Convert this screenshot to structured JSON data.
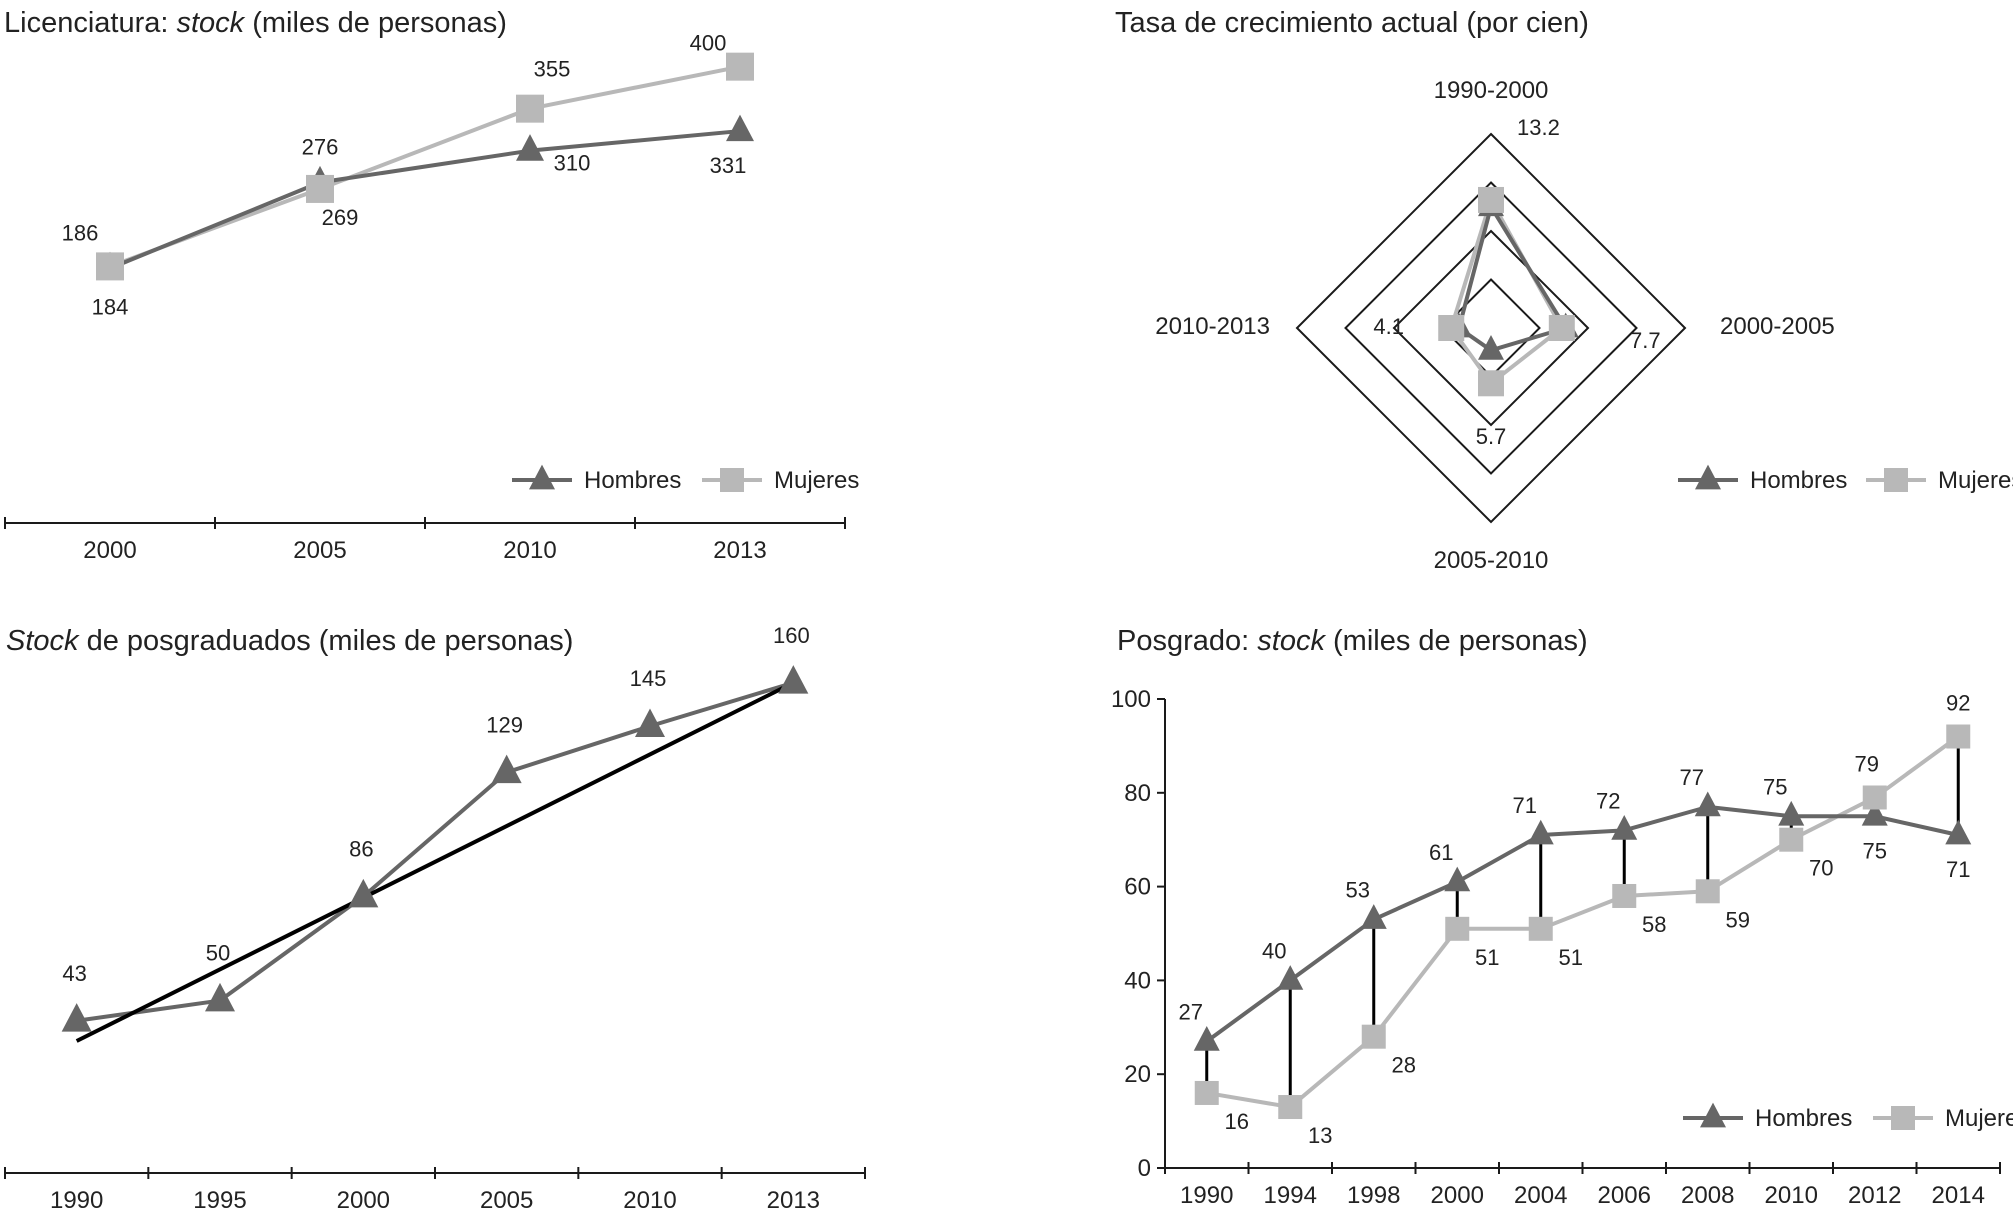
{
  "colors": {
    "hombres": "#666666",
    "mujeres": "#b8b8b8",
    "trend": "#000000",
    "axis": "#1a1a1a"
  },
  "legend": {
    "hombres": "Hombres",
    "mujeres": "Mujeres"
  },
  "chart_data": [
    {
      "type": "line",
      "title": {
        "pre": "Licenciatura: ",
        "em": "stock",
        "post": " (miles de personas)"
      },
      "categories": [
        "2000",
        "2005",
        "2010",
        "2013"
      ],
      "series": [
        {
          "name": "Hombres",
          "values": [
            184,
            276,
            310,
            331
          ]
        },
        {
          "name": "Mujeres",
          "values": [
            186,
            269,
            355,
            400
          ]
        }
      ],
      "ylim": [
        0,
        450
      ],
      "legend_position": "bottom-right"
    },
    {
      "type": "radar",
      "title": {
        "pre": "Tasa de crecimiento actual (por cien)",
        "em": "",
        "post": ""
      },
      "axes": [
        "1990-2000",
        "2000-2005",
        "2005-2010",
        "2010-2013"
      ],
      "series": [
        {
          "name": "Hombres",
          "values": [
            12.5,
            7.7,
            2.3,
            3.3
          ]
        },
        {
          "name": "Mujeres",
          "values": [
            13.2,
            7.3,
            5.7,
            4.1
          ]
        }
      ],
      "value_labels": [
        "13.2",
        "7.7",
        "5.7",
        "4.1"
      ],
      "rmax": 20,
      "rings": [
        5,
        10,
        15,
        20
      ],
      "legend_position": "bottom-right"
    },
    {
      "type": "line",
      "title": {
        "pre": "",
        "em": "Stock",
        "post": " de posgraduados (miles de personas)"
      },
      "categories": [
        "1990",
        "1995",
        "2000",
        "2005",
        "2010",
        "2013"
      ],
      "series": [
        {
          "name": "",
          "values": [
            43,
            50,
            86,
            129,
            145,
            160
          ]
        }
      ],
      "trend": [
        36,
        160
      ],
      "ylim": [
        0,
        180
      ]
    },
    {
      "type": "line",
      "title": {
        "pre": "Posgrado: ",
        "em": "stock",
        "post": " (miles de personas)"
      },
      "categories": [
        "1990",
        "1994",
        "1998",
        "2000",
        "2004",
        "2006",
        "2008",
        "2010",
        "2012",
        "2014"
      ],
      "series": [
        {
          "name": "Hombres",
          "values": [
            27,
            40,
            53,
            61,
            71,
            72,
            77,
            75,
            75,
            71
          ]
        },
        {
          "name": "Mujeres",
          "values": [
            16,
            13,
            28,
            51,
            51,
            58,
            59,
            70,
            79,
            92
          ]
        }
      ],
      "ylim": [
        0,
        100
      ],
      "yticks": [
        0,
        20,
        40,
        60,
        80,
        100
      ],
      "legend_position": "bottom-right"
    }
  ]
}
